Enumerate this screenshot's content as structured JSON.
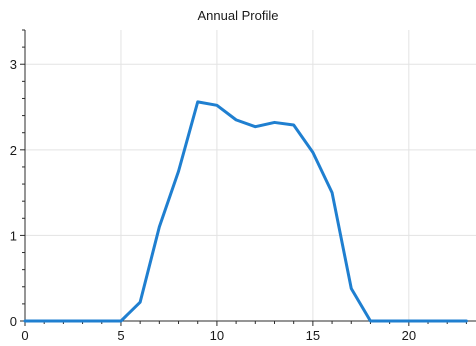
{
  "chart_data": {
    "type": "line",
    "title": "Annual Profile",
    "xlabel": "",
    "ylabel": "",
    "xlim": [
      0,
      23.5
    ],
    "ylim": [
      0,
      3.4
    ],
    "x_ticks": [
      0,
      5,
      10,
      15,
      20
    ],
    "y_ticks": [
      0,
      1,
      2,
      3
    ],
    "grid": true,
    "line_color": "#1f7fd0",
    "series": [
      {
        "x": [
          0,
          1,
          2,
          3,
          4,
          5,
          6,
          7,
          8,
          9,
          10,
          11,
          12,
          13,
          14,
          15,
          16,
          17,
          18,
          19,
          20,
          21,
          22,
          23
        ],
        "values": [
          0,
          0,
          0,
          0,
          0,
          0,
          0.22,
          1.1,
          1.75,
          2.56,
          2.52,
          2.35,
          2.27,
          2.32,
          2.29,
          1.97,
          1.5,
          0.38,
          0,
          0,
          0,
          0,
          0,
          0
        ]
      }
    ]
  }
}
